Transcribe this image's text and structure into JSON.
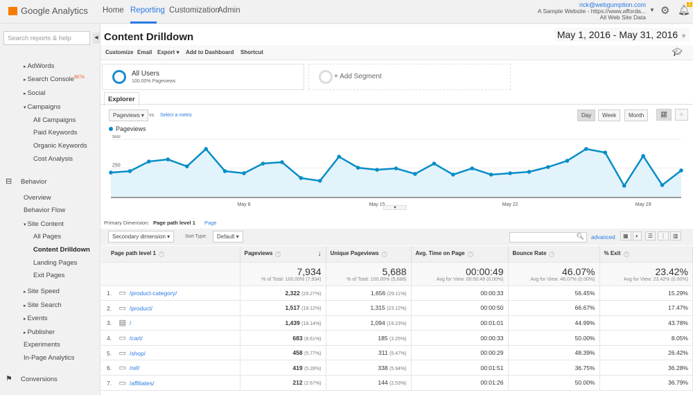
{
  "app": {
    "name": "Google Analytics"
  },
  "nav": [
    "Home",
    "Reporting",
    "Customization",
    "Admin"
  ],
  "account": {
    "email": "rick@webgumption.com",
    "property": "A Sample Website - https://www.afforda...",
    "view": "All Web Site Data",
    "notifications": "1"
  },
  "sidebar": {
    "search_placeholder": "Search reports & help",
    "items": [
      "AdWords",
      "Search Console",
      "Social",
      "Campaigns",
      "All Campaigns",
      "Paid Keywords",
      "Organic Keywords",
      "Cost Analysis",
      "Behavior",
      "Overview",
      "Behavior Flow",
      "Site Content",
      "All Pages",
      "Content Drilldown",
      "Landing Pages",
      "Exit Pages",
      "Site Speed",
      "Site Search",
      "Events",
      "Publisher",
      "Experiments",
      "In-Page Analytics",
      "Conversions"
    ],
    "beta": "BETA"
  },
  "page": {
    "title": "Content Drilldown",
    "date_range": "May 1, 2016 - May 31, 2016"
  },
  "toolbar": [
    "Customize",
    "Email",
    "Export",
    "Add to Dashboard",
    "Shortcut"
  ],
  "segments": {
    "name": "All Users",
    "sub": "100.00% Pageviews",
    "add": "+ Add Segment"
  },
  "explorer": {
    "tab": "Explorer",
    "metric": "Pageviews",
    "vs": "vs.",
    "select": "Select a metric",
    "periods": [
      "Day",
      "Week",
      "Month"
    ],
    "active_period": "Day"
  },
  "chart_data": {
    "type": "area",
    "series": [
      {
        "name": "Pageviews",
        "color": "#058dc7",
        "values": [
          211,
          223,
          307,
          325,
          265,
          416,
          223,
          205,
          289,
          301,
          163,
          139,
          349,
          253,
          235,
          247,
          199,
          289,
          193,
          247,
          193,
          205,
          217,
          259,
          313,
          416,
          385,
          96,
          355,
          102,
          229
        ]
      }
    ],
    "x_ticks": [
      "May 8",
      "May 15",
      "May 22",
      "May 29"
    ],
    "y_ticks": [
      "250",
      "500"
    ],
    "ylim": [
      0,
      500
    ]
  },
  "dimension": {
    "label": "Primary Dimension:",
    "active": "Page path level 1",
    "other": "Page"
  },
  "controls": {
    "secondary": "Secondary dimension",
    "sort_label": "Sort Type:",
    "sort": "Default",
    "advanced": "advanced"
  },
  "table": {
    "headers": [
      "Page path level 1",
      "Pageviews",
      "Unique Pageviews",
      "Avg. Time on Page",
      "Bounce Rate",
      "% Exit"
    ],
    "totals": [
      {
        "v": "7,934",
        "s": "% of Total: 100.00% (7,934)"
      },
      {
        "v": "5,688",
        "s": "% of Total: 100.00% (5,688)"
      },
      {
        "v": "00:00:49",
        "s": "Avg for View: 00:00:49 (0.00%)"
      },
      {
        "v": "46.07%",
        "s": "Avg for View: 46.07% (0.00%)"
      },
      {
        "v": "23.42%",
        "s": "Avg for View: 23.42% (0.00%)"
      }
    ],
    "rows": [
      [
        "1.",
        "/product-category/",
        "2,322",
        "(29.27%)",
        "1,656",
        "(29.11%)",
        "00:00:33",
        "56.45%",
        "15.29%"
      ],
      [
        "2.",
        "/product/",
        "1,517",
        "(19.12%)",
        "1,315",
        "(23.12%)",
        "00:00:50",
        "66.67%",
        "17.47%"
      ],
      [
        "3.",
        "/",
        "1,439",
        "(18.14%)",
        "1,094",
        "(19.23%)",
        "00:01:01",
        "44.99%",
        "43.78%"
      ],
      [
        "4.",
        "/cart/",
        "683",
        "(8.61%)",
        "185",
        "(3.25%)",
        "00:00:33",
        "50.00%",
        "8.05%"
      ],
      [
        "5.",
        "/shop/",
        "458",
        "(5.77%)",
        "311",
        "(5.47%)",
        "00:00:29",
        "48.39%",
        "26.42%"
      ],
      [
        "6.",
        "/ref/",
        "419",
        "(5.28%)",
        "338",
        "(5.94%)",
        "00:01:51",
        "36.75%",
        "36.28%"
      ],
      [
        "7.",
        "/affiliates/",
        "212",
        "(2.67%)",
        "144",
        "(2.53%)",
        "00:01:26",
        "50.00%",
        "36.79%"
      ]
    ]
  }
}
